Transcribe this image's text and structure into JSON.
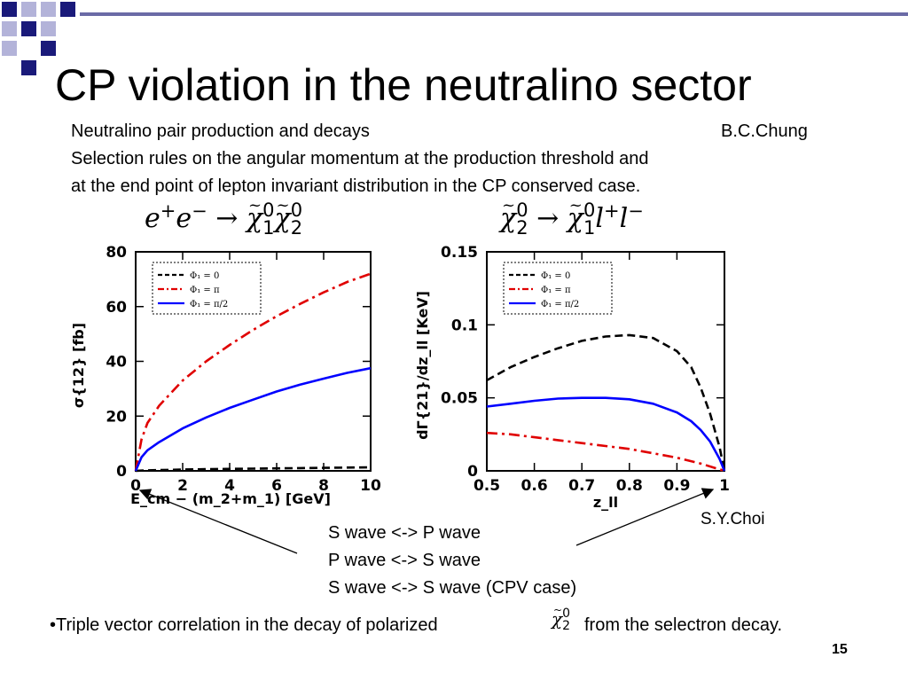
{
  "slide": {
    "title": "CP violation in the neutralino sector",
    "subtitle_left": "Neutralino pair production and decays",
    "author_credit": "B.C.Chung",
    "description_line1": "Selection rules on the angular momentum at the production threshold and",
    "description_line2": "at the end point of lepton invariant distribution in the CP conserved case.",
    "plot_credit": "S.Y.Choi",
    "wave_rules": [
      "S wave <-> P wave",
      "P wave <-> S wave",
      "S wave <-> S wave (CPV case)"
    ],
    "bullet_prefix": "•Triple vector correlation in the decay of polarized",
    "bullet_suffix": "from the selectron decay.",
    "page_number": "15"
  },
  "equations": {
    "production": {
      "e": "e",
      "plus": "+",
      "minus": "−",
      "arrow": "→",
      "chi": "χ",
      "tilde": "~",
      "sup": "0",
      "sub1": "1",
      "sub2": "2"
    },
    "decay": {
      "chi": "χ",
      "tilde": "~",
      "sup": "0",
      "sub1": "1",
      "sub2": "2",
      "arrow": "→",
      "l": "l",
      "plus": "+",
      "minus": "−"
    },
    "inline": {
      "chi": "χ",
      "tilde": "~",
      "sup": "0",
      "sub": "2"
    }
  },
  "colors": {
    "phi_0": "#000000",
    "phi_pi": "#e00000",
    "phi_pi_half": "#0000ff",
    "decor_navy": "#1a1a7a",
    "decor_light": "#b3b3d9"
  },
  "chart_data": [
    {
      "type": "line",
      "ylabel": "σ{12} [fb]",
      "xlabel": "E_cm − (m_2+m_1) [GeV]",
      "xlim": [
        0,
        10
      ],
      "ylim": [
        0,
        80
      ],
      "xticks": [
        0,
        2,
        4,
        6,
        8,
        10
      ],
      "yticks": [
        0,
        20,
        40,
        60,
        80
      ],
      "legend_position": "top-left",
      "series": [
        {
          "name": "Φ₁ = 0",
          "style": "dashed",
          "color": "#000000",
          "x": [
            0.0,
            0.5,
            1,
            2,
            3,
            4,
            5,
            6,
            7,
            8,
            9,
            10
          ],
          "y": [
            0.0,
            0.2,
            0.3,
            0.5,
            0.6,
            0.7,
            0.8,
            0.9,
            1.0,
            1.1,
            1.2,
            1.3
          ]
        },
        {
          "name": "Φ₁ = π",
          "style": "dashdot",
          "color": "#e00000",
          "x": [
            0.0,
            0.25,
            0.5,
            1,
            2,
            3,
            4,
            5,
            6,
            7,
            8,
            9,
            10
          ],
          "y": [
            0.0,
            11.5,
            17.5,
            23.8,
            33.0,
            40.0,
            46.0,
            51.5,
            56.5,
            61.0,
            65.2,
            69.0,
            72.0
          ]
        },
        {
          "name": "Φ₁ = π/2",
          "style": "solid",
          "color": "#0000ff",
          "x": [
            0.0,
            0.25,
            0.5,
            1,
            2,
            3,
            4,
            5,
            6,
            7,
            8,
            9,
            10
          ],
          "y": [
            0.0,
            5.0,
            7.5,
            10.5,
            15.5,
            19.5,
            23.0,
            26.0,
            29.0,
            31.5,
            33.7,
            35.8,
            37.5
          ]
        }
      ]
    },
    {
      "type": "line",
      "ylabel": "dΓ{21}/dz_ll [KeV]",
      "xlabel": "z_ll",
      "xlim": [
        0.5,
        1.0
      ],
      "ylim": [
        0,
        0.15
      ],
      "xticks": [
        0.5,
        0.6,
        0.7,
        0.8,
        0.9,
        1
      ],
      "yticks": [
        0,
        0.05,
        0.1,
        0.15
      ],
      "legend_position": "top-left",
      "series": [
        {
          "name": "Φ₁ = 0",
          "style": "dashed",
          "color": "#000000",
          "x": [
            0.5,
            0.55,
            0.6,
            0.65,
            0.7,
            0.75,
            0.8,
            0.85,
            0.9,
            0.93,
            0.95,
            0.97,
            0.99,
            1.0
          ],
          "y": [
            0.062,
            0.071,
            0.078,
            0.084,
            0.089,
            0.092,
            0.093,
            0.091,
            0.082,
            0.071,
            0.057,
            0.039,
            0.016,
            0.0
          ]
        },
        {
          "name": "Φ₁ = π",
          "style": "dashdot",
          "color": "#e00000",
          "x": [
            0.5,
            0.55,
            0.6,
            0.65,
            0.7,
            0.75,
            0.8,
            0.85,
            0.9,
            0.95,
            1.0
          ],
          "y": [
            0.026,
            0.025,
            0.023,
            0.021,
            0.019,
            0.017,
            0.015,
            0.012,
            0.009,
            0.005,
            0.0
          ]
        },
        {
          "name": "Φ₁ = π/2",
          "style": "solid",
          "color": "#0000ff",
          "x": [
            0.5,
            0.55,
            0.6,
            0.65,
            0.7,
            0.75,
            0.8,
            0.85,
            0.9,
            0.93,
            0.95,
            0.97,
            0.99,
            1.0
          ],
          "y": [
            0.044,
            0.046,
            0.048,
            0.0495,
            0.05,
            0.05,
            0.049,
            0.046,
            0.04,
            0.034,
            0.028,
            0.02,
            0.008,
            0.0
          ]
        }
      ]
    }
  ]
}
